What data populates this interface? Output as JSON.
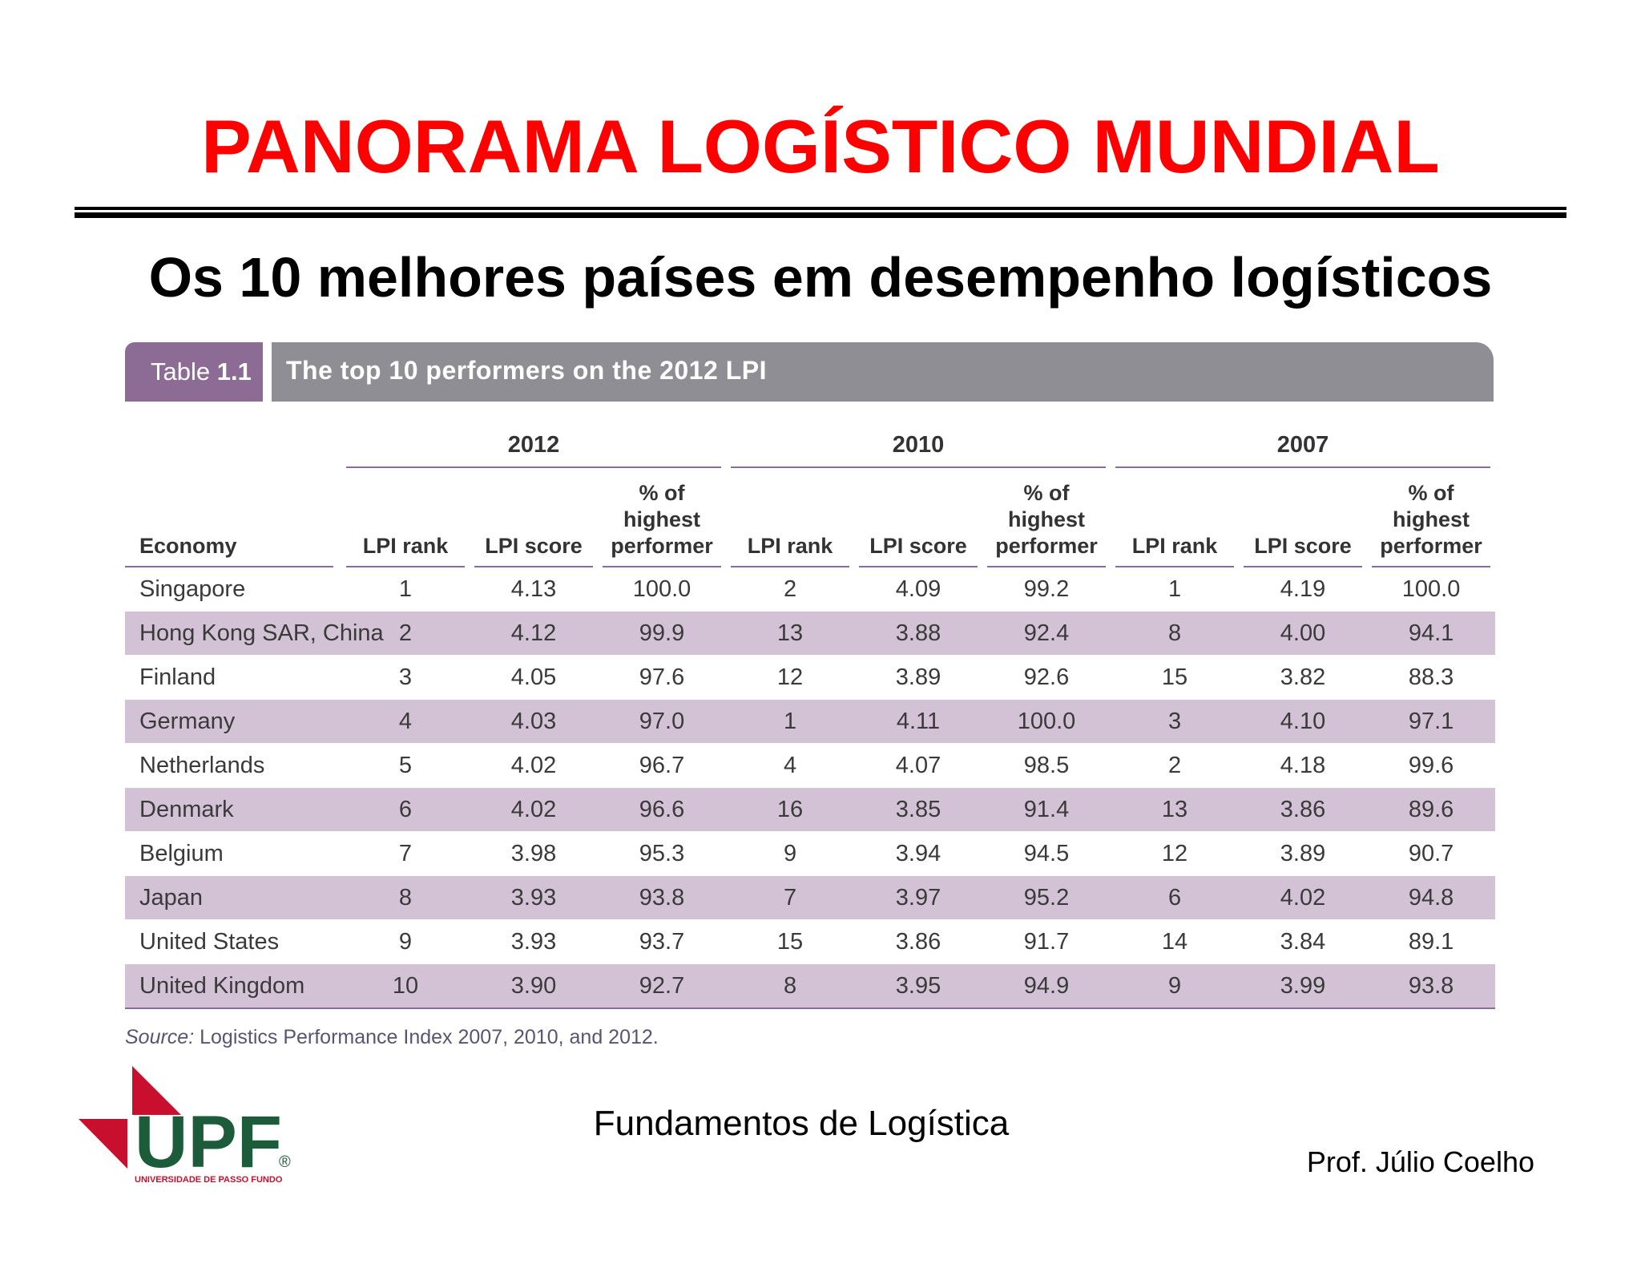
{
  "slide": {
    "title": "PANORAMA LOGÍSTICO MUNDIAL",
    "subtitle": "Os 10 melhores países em desempenho logísticos",
    "footer_course": "Fundamentos de Logística",
    "footer_author": "Prof. Júlio Coelho"
  },
  "logo": {
    "letters": "UPF",
    "caption": "UNIVERSIDADE DE PASSO FUNDO",
    "registered": "®",
    "colors": {
      "red": "#c8102e",
      "green": "#1d5c3a"
    }
  },
  "table": {
    "label_prefix": "Table",
    "label_number": "1.1",
    "heading": "The top 10 performers on the 2012 LPI",
    "years": [
      "2012",
      "2010",
      "2007"
    ],
    "economy_header": "Economy",
    "col_rank": "LPI rank",
    "col_score": "LPI score",
    "col_pct": "% of highest performer",
    "rows": [
      {
        "economy": "Singapore",
        "r12": "1",
        "s12": "4.13",
        "p12": "100.0",
        "r10": "2",
        "s10": "4.09",
        "p10": "99.2",
        "r07": "1",
        "s07": "4.19",
        "p07": "100.0"
      },
      {
        "economy": "Hong Kong SAR, China",
        "r12": "2",
        "s12": "4.12",
        "p12": "99.9",
        "r10": "13",
        "s10": "3.88",
        "p10": "92.4",
        "r07": "8",
        "s07": "4.00",
        "p07": "94.1"
      },
      {
        "economy": "Finland",
        "r12": "3",
        "s12": "4.05",
        "p12": "97.6",
        "r10": "12",
        "s10": "3.89",
        "p10": "92.6",
        "r07": "15",
        "s07": "3.82",
        "p07": "88.3"
      },
      {
        "economy": "Germany",
        "r12": "4",
        "s12": "4.03",
        "p12": "97.0",
        "r10": "1",
        "s10": "4.11",
        "p10": "100.0",
        "r07": "3",
        "s07": "4.10",
        "p07": "97.1"
      },
      {
        "economy": "Netherlands",
        "r12": "5",
        "s12": "4.02",
        "p12": "96.7",
        "r10": "4",
        "s10": "4.07",
        "p10": "98.5",
        "r07": "2",
        "s07": "4.18",
        "p07": "99.6"
      },
      {
        "economy": "Denmark",
        "r12": "6",
        "s12": "4.02",
        "p12": "96.6",
        "r10": "16",
        "s10": "3.85",
        "p10": "91.4",
        "r07": "13",
        "s07": "3.86",
        "p07": "89.6"
      },
      {
        "economy": "Belgium",
        "r12": "7",
        "s12": "3.98",
        "p12": "95.3",
        "r10": "9",
        "s10": "3.94",
        "p10": "94.5",
        "r07": "12",
        "s07": "3.89",
        "p07": "90.7"
      },
      {
        "economy": "Japan",
        "r12": "8",
        "s12": "3.93",
        "p12": "93.8",
        "r10": "7",
        "s10": "3.97",
        "p10": "95.2",
        "r07": "6",
        "s07": "4.02",
        "p07": "94.8"
      },
      {
        "economy": "United States",
        "r12": "9",
        "s12": "3.93",
        "p12": "93.7",
        "r10": "15",
        "s10": "3.86",
        "p10": "91.7",
        "r07": "14",
        "s07": "3.84",
        "p07": "89.1"
      },
      {
        "economy": "United Kingdom",
        "r12": "10",
        "s12": "3.90",
        "p12": "92.7",
        "r10": "8",
        "s10": "3.95",
        "p10": "94.9",
        "r07": "9",
        "s07": "3.99",
        "p07": "93.8"
      }
    ],
    "source_label": "Source:",
    "source_text": " Logistics Performance Index 2007, 2010, and 2012."
  },
  "colors": {
    "title_red": "#ff0000",
    "tab_purple": "#8c6b95",
    "tab_gray": "#8e8e94",
    "row_band": "#d3c2d6"
  }
}
